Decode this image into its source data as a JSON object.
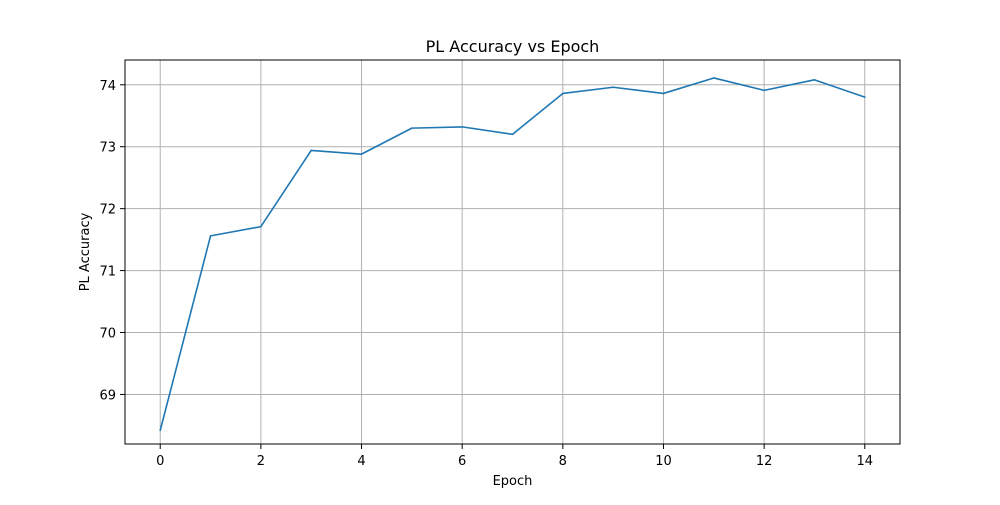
{
  "chart_data": {
    "type": "line",
    "title": "PL Accuracy vs Epoch",
    "xlabel": "Epoch",
    "ylabel": "PL Accuracy",
    "xlim": [
      -0.7,
      14.7
    ],
    "ylim": [
      68.2,
      74.4
    ],
    "xticks": [
      0,
      2,
      4,
      6,
      8,
      10,
      12,
      14
    ],
    "yticks": [
      69,
      70,
      71,
      72,
      73,
      74
    ],
    "grid": true,
    "line_color": "#1f77b4",
    "series": [
      {
        "x": [
          0,
          1,
          2,
          3,
          4,
          5,
          6,
          7,
          8,
          9,
          10,
          11,
          12,
          13,
          14
        ],
        "values": [
          68.42,
          71.56,
          71.71,
          72.94,
          72.88,
          73.3,
          73.32,
          73.2,
          73.86,
          73.96,
          73.86,
          74.11,
          73.91,
          74.08,
          73.8
        ]
      }
    ]
  }
}
